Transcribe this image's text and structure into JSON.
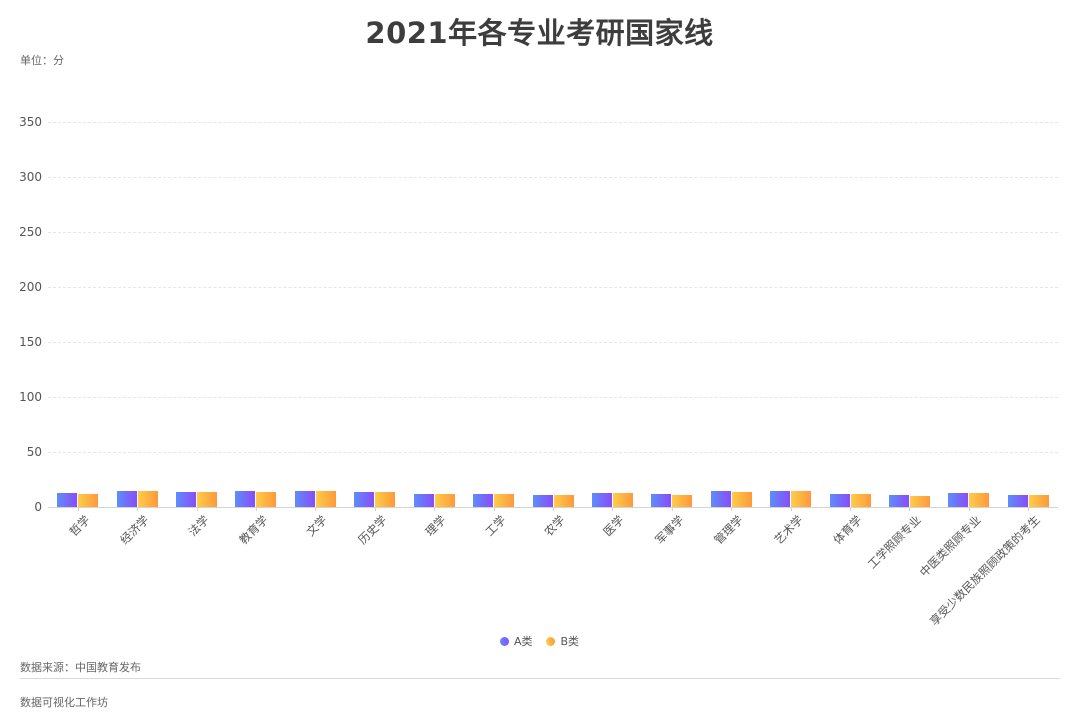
{
  "header": {
    "title": "2021年各专业考研国家线",
    "unit": "单位：分"
  },
  "legend": [
    {
      "label": "A类",
      "color": "#7a5cfa"
    },
    {
      "label": "B类",
      "color": "#ffb340"
    }
  ],
  "footer": {
    "source": "数据来源：中国教育发布",
    "credit": "数据可视化工作坊"
  },
  "colors": {
    "a_start": "#5d8ef9",
    "a_end": "#8a4bfb",
    "b_start": "#ffcd48",
    "b_end": "#ff993c"
  },
  "chart_data": {
    "type": "bar",
    "title": "2021年各专业考研国家线",
    "xlabel": "",
    "ylabel": "单位：分",
    "ylim": [
      0,
      350
    ],
    "yticks": [
      0,
      50,
      100,
      150,
      200,
      250,
      300,
      350
    ],
    "grid": true,
    "legend_position": "bottom",
    "categories": [
      "哲学",
      "经济学",
      "法学",
      "教育学",
      "文学",
      "历史学",
      "理学",
      "工学",
      "农学",
      "医学",
      "军事学",
      "管理学",
      "艺术学",
      "体育学",
      "工学照顾专业",
      "中医类照顾专业",
      "享受少数民族照顾政策的考生"
    ],
    "series": [
      {
        "name": "A类",
        "values": [
          12.5,
          14.5,
          14.0,
          14.3,
          14.9,
          13.8,
          12.2,
          11.8,
          10.9,
          13.0,
          11.5,
          14.5,
          14.9,
          12.2,
          10.9,
          12.7,
          10.9
        ]
      },
      {
        "name": "B类",
        "values": [
          11.8,
          14.3,
          13.4,
          14.0,
          14.5,
          13.5,
          11.8,
          11.5,
          10.6,
          12.7,
          11.3,
          14.0,
          14.5,
          11.8,
          10.3,
          12.4,
          10.6
        ]
      }
    ]
  }
}
